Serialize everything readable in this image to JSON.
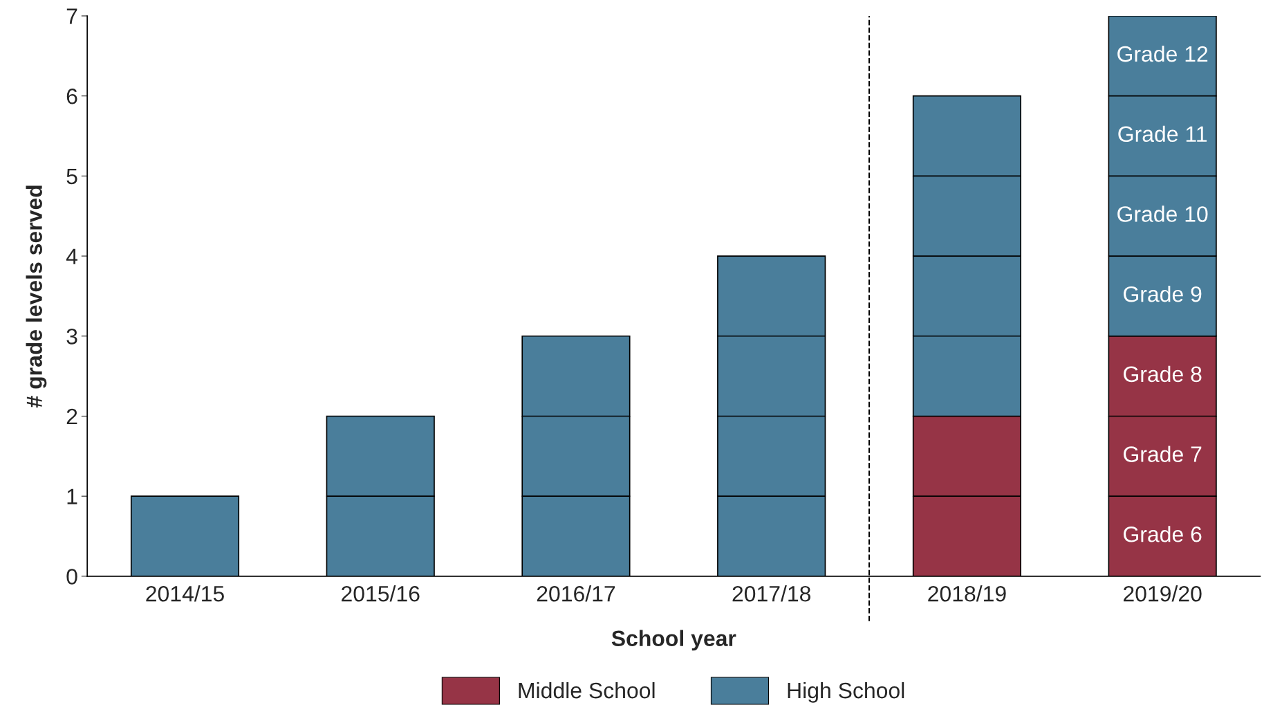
{
  "chart_data": {
    "type": "bar",
    "xlabel": "School year",
    "ylabel": "# grade levels served",
    "categories": [
      "2014/15",
      "2015/16",
      "2016/17",
      "2017/18",
      "2018/19",
      "2019/20"
    ],
    "stacked": true,
    "series": [
      {
        "name": "Middle School",
        "color": "#963446",
        "values": [
          0,
          0,
          0,
          0,
          2,
          3
        ]
      },
      {
        "name": "High School",
        "color": "#4a7e9b",
        "values": [
          1,
          2,
          3,
          4,
          4,
          4
        ]
      }
    ],
    "ylim": [
      0,
      7
    ],
    "yticks": [
      0,
      1,
      2,
      3,
      4,
      5,
      6,
      7
    ],
    "annotations": [
      "Grade 6",
      "Grade 7",
      "Grade 8",
      "Grade 9",
      "Grade 10",
      "Grade 11",
      "Grade 12"
    ],
    "grid": false,
    "legend": "bottom"
  }
}
